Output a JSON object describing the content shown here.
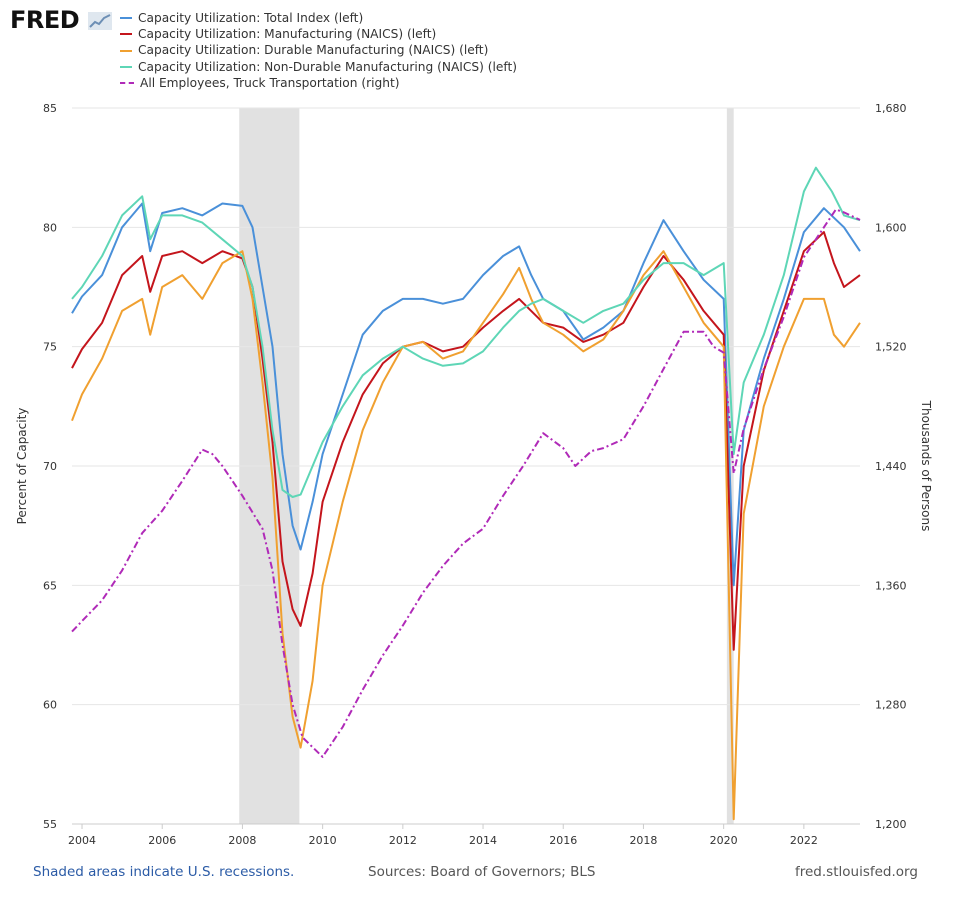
{
  "header": {
    "logo_text": "FRED"
  },
  "footer": {
    "recession_note": "Shaded areas indicate U.S. recessions.",
    "sources": "Sources: Board of Governors; BLS",
    "site": "fred.stlouisfed.org"
  },
  "chart_data": {
    "type": "line",
    "title": "",
    "xlabel": "",
    "ylabel_left": "Percent of Capacity",
    "ylabel_right": "Thousands of Persons",
    "x_range": [
      2003.75,
      2023.4
    ],
    "ylim_left": [
      55,
      85
    ],
    "ylim_right": [
      1200,
      1680
    ],
    "x_ticks": [
      "2004",
      "2006",
      "2008",
      "2010",
      "2012",
      "2014",
      "2016",
      "2018",
      "2020",
      "2022"
    ],
    "y_ticks_left": [
      "55",
      "60",
      "65",
      "70",
      "75",
      "80",
      "85"
    ],
    "y_ticks_right": [
      "1,200",
      "1,280",
      "1,360",
      "1,440",
      "1,520",
      "1,600",
      "1,680"
    ],
    "grid": true,
    "legend_position": "top-left",
    "recessions": [
      [
        2007.92,
        2009.42
      ],
      [
        2020.08,
        2020.25
      ]
    ],
    "series": [
      {
        "name": "Capacity Utilization: Total Index (left)",
        "axis": "left",
        "color": "#4a90d9",
        "dash": "solid",
        "points": [
          [
            2003.75,
            76.4
          ],
          [
            2004.0,
            77.1
          ],
          [
            2004.5,
            78.0
          ],
          [
            2005.0,
            80.0
          ],
          [
            2005.5,
            81.0
          ],
          [
            2005.7,
            79.0
          ],
          [
            2006.0,
            80.6
          ],
          [
            2006.5,
            80.8
          ],
          [
            2007.0,
            80.5
          ],
          [
            2007.5,
            81.0
          ],
          [
            2008.0,
            80.9
          ],
          [
            2008.25,
            80.0
          ],
          [
            2008.5,
            77.5
          ],
          [
            2008.75,
            75.0
          ],
          [
            2009.0,
            70.5
          ],
          [
            2009.25,
            67.5
          ],
          [
            2009.45,
            66.5
          ],
          [
            2009.75,
            68.5
          ],
          [
            2010.0,
            70.5
          ],
          [
            2010.5,
            73.0
          ],
          [
            2011.0,
            75.5
          ],
          [
            2011.5,
            76.5
          ],
          [
            2012.0,
            77.0
          ],
          [
            2012.5,
            77.0
          ],
          [
            2013.0,
            76.8
          ],
          [
            2013.5,
            77.0
          ],
          [
            2014.0,
            78.0
          ],
          [
            2014.5,
            78.8
          ],
          [
            2014.9,
            79.2
          ],
          [
            2015.2,
            78.0
          ],
          [
            2015.5,
            77.0
          ],
          [
            2016.0,
            76.5
          ],
          [
            2016.5,
            75.3
          ],
          [
            2017.0,
            75.8
          ],
          [
            2017.5,
            76.5
          ],
          [
            2018.0,
            78.5
          ],
          [
            2018.5,
            80.3
          ],
          [
            2019.0,
            79.0
          ],
          [
            2019.5,
            77.8
          ],
          [
            2020.0,
            77.0
          ],
          [
            2020.25,
            65.0
          ],
          [
            2020.5,
            71.5
          ],
          [
            2021.0,
            74.5
          ],
          [
            2021.5,
            77.0
          ],
          [
            2022.0,
            79.8
          ],
          [
            2022.5,
            80.8
          ],
          [
            2023.0,
            80.0
          ],
          [
            2023.4,
            79.0
          ]
        ]
      },
      {
        "name": "Capacity Utilization: Manufacturing (NAICS) (left)",
        "axis": "left",
        "color": "#c4151c",
        "dash": "solid",
        "points": [
          [
            2003.75,
            74.1
          ],
          [
            2004.0,
            74.9
          ],
          [
            2004.5,
            76.0
          ],
          [
            2005.0,
            78.0
          ],
          [
            2005.5,
            78.8
          ],
          [
            2005.7,
            77.3
          ],
          [
            2006.0,
            78.8
          ],
          [
            2006.5,
            79.0
          ],
          [
            2007.0,
            78.5
          ],
          [
            2007.5,
            79.0
          ],
          [
            2008.0,
            78.7
          ],
          [
            2008.25,
            77.5
          ],
          [
            2008.5,
            74.5
          ],
          [
            2008.75,
            71.0
          ],
          [
            2009.0,
            66.0
          ],
          [
            2009.25,
            64.0
          ],
          [
            2009.45,
            63.3
          ],
          [
            2009.75,
            65.5
          ],
          [
            2010.0,
            68.5
          ],
          [
            2010.5,
            71.0
          ],
          [
            2011.0,
            73.0
          ],
          [
            2011.5,
            74.3
          ],
          [
            2012.0,
            75.0
          ],
          [
            2012.5,
            75.2
          ],
          [
            2013.0,
            74.8
          ],
          [
            2013.5,
            75.0
          ],
          [
            2014.0,
            75.8
          ],
          [
            2014.5,
            76.5
          ],
          [
            2014.9,
            77.0
          ],
          [
            2015.2,
            76.5
          ],
          [
            2015.5,
            76.0
          ],
          [
            2016.0,
            75.8
          ],
          [
            2016.5,
            75.2
          ],
          [
            2017.0,
            75.5
          ],
          [
            2017.5,
            76.0
          ],
          [
            2018.0,
            77.5
          ],
          [
            2018.5,
            78.8
          ],
          [
            2019.0,
            77.8
          ],
          [
            2019.5,
            76.5
          ],
          [
            2020.0,
            75.5
          ],
          [
            2020.25,
            62.3
          ],
          [
            2020.5,
            70.0
          ],
          [
            2021.0,
            74.0
          ],
          [
            2021.5,
            76.5
          ],
          [
            2022.0,
            79.0
          ],
          [
            2022.5,
            79.8
          ],
          [
            2022.75,
            78.5
          ],
          [
            2023.0,
            77.5
          ],
          [
            2023.4,
            78.0
          ]
        ]
      },
      {
        "name": "Capacity Utilization: Durable Manufacturing (NAICS) (left)",
        "axis": "left",
        "color": "#f0a030",
        "dash": "solid",
        "points": [
          [
            2003.75,
            71.9
          ],
          [
            2004.0,
            73.0
          ],
          [
            2004.5,
            74.5
          ],
          [
            2005.0,
            76.5
          ],
          [
            2005.5,
            77.0
          ],
          [
            2005.7,
            75.5
          ],
          [
            2006.0,
            77.5
          ],
          [
            2006.5,
            78.0
          ],
          [
            2007.0,
            77.0
          ],
          [
            2007.5,
            78.5
          ],
          [
            2008.0,
            79.0
          ],
          [
            2008.25,
            77.0
          ],
          [
            2008.5,
            73.5
          ],
          [
            2008.75,
            69.5
          ],
          [
            2009.0,
            63.0
          ],
          [
            2009.25,
            59.5
          ],
          [
            2009.45,
            58.2
          ],
          [
            2009.75,
            61.0
          ],
          [
            2010.0,
            65.0
          ],
          [
            2010.5,
            68.5
          ],
          [
            2011.0,
            71.5
          ],
          [
            2011.5,
            73.5
          ],
          [
            2012.0,
            75.0
          ],
          [
            2012.5,
            75.2
          ],
          [
            2013.0,
            74.5
          ],
          [
            2013.5,
            74.8
          ],
          [
            2014.0,
            76.0
          ],
          [
            2014.5,
            77.2
          ],
          [
            2014.9,
            78.3
          ],
          [
            2015.2,
            77.0
          ],
          [
            2015.5,
            76.0
          ],
          [
            2016.0,
            75.5
          ],
          [
            2016.5,
            74.8
          ],
          [
            2017.0,
            75.3
          ],
          [
            2017.5,
            76.5
          ],
          [
            2018.0,
            78.0
          ],
          [
            2018.5,
            79.0
          ],
          [
            2019.0,
            77.5
          ],
          [
            2019.5,
            76.0
          ],
          [
            2020.0,
            75.0
          ],
          [
            2020.25,
            55.2
          ],
          [
            2020.5,
            68.0
          ],
          [
            2021.0,
            72.5
          ],
          [
            2021.5,
            75.0
          ],
          [
            2022.0,
            77.0
          ],
          [
            2022.5,
            77.0
          ],
          [
            2022.75,
            75.5
          ],
          [
            2023.0,
            75.0
          ],
          [
            2023.4,
            76.0
          ]
        ]
      },
      {
        "name": "Capacity Utilization: Non-Durable Manufacturing (NAICS) (left)",
        "axis": "left",
        "color": "#5ed6b6",
        "dash": "solid",
        "points": [
          [
            2003.75,
            77.0
          ],
          [
            2004.0,
            77.5
          ],
          [
            2004.5,
            78.8
          ],
          [
            2005.0,
            80.5
          ],
          [
            2005.5,
            81.3
          ],
          [
            2005.7,
            79.5
          ],
          [
            2006.0,
            80.5
          ],
          [
            2006.5,
            80.5
          ],
          [
            2007.0,
            80.2
          ],
          [
            2007.5,
            79.5
          ],
          [
            2008.0,
            78.8
          ],
          [
            2008.25,
            77.5
          ],
          [
            2008.5,
            75.0
          ],
          [
            2008.75,
            71.5
          ],
          [
            2009.0,
            69.0
          ],
          [
            2009.25,
            68.7
          ],
          [
            2009.45,
            68.8
          ],
          [
            2009.75,
            70.0
          ],
          [
            2010.0,
            71.0
          ],
          [
            2010.5,
            72.5
          ],
          [
            2011.0,
            73.8
          ],
          [
            2011.5,
            74.5
          ],
          [
            2012.0,
            75.0
          ],
          [
            2012.5,
            74.5
          ],
          [
            2013.0,
            74.2
          ],
          [
            2013.5,
            74.3
          ],
          [
            2014.0,
            74.8
          ],
          [
            2014.5,
            75.8
          ],
          [
            2014.9,
            76.5
          ],
          [
            2015.2,
            76.8
          ],
          [
            2015.5,
            77.0
          ],
          [
            2016.0,
            76.5
          ],
          [
            2016.5,
            76.0
          ],
          [
            2017.0,
            76.5
          ],
          [
            2017.5,
            76.8
          ],
          [
            2018.0,
            77.8
          ],
          [
            2018.5,
            78.5
          ],
          [
            2019.0,
            78.5
          ],
          [
            2019.5,
            78.0
          ],
          [
            2020.0,
            78.5
          ],
          [
            2020.25,
            70.5
          ],
          [
            2020.5,
            73.5
          ],
          [
            2021.0,
            75.5
          ],
          [
            2021.5,
            78.0
          ],
          [
            2022.0,
            81.5
          ],
          [
            2022.3,
            82.5
          ],
          [
            2022.7,
            81.5
          ],
          [
            2023.0,
            80.5
          ],
          [
            2023.4,
            80.3
          ]
        ]
      },
      {
        "name": "All Employees, Truck Transportation (right)",
        "axis": "right",
        "color": "#b02ab8",
        "dash": "dashdot",
        "points": [
          [
            2003.75,
            1329
          ],
          [
            2004.0,
            1336
          ],
          [
            2004.5,
            1350
          ],
          [
            2005.0,
            1370
          ],
          [
            2005.5,
            1395
          ],
          [
            2006.0,
            1410
          ],
          [
            2006.5,
            1430
          ],
          [
            2007.0,
            1451
          ],
          [
            2007.25,
            1448
          ],
          [
            2007.5,
            1440
          ],
          [
            2008.0,
            1420
          ],
          [
            2008.5,
            1398
          ],
          [
            2008.75,
            1370
          ],
          [
            2009.0,
            1320
          ],
          [
            2009.25,
            1280
          ],
          [
            2009.5,
            1258
          ],
          [
            2010.0,
            1245
          ],
          [
            2010.5,
            1265
          ],
          [
            2011.0,
            1290
          ],
          [
            2011.5,
            1313
          ],
          [
            2012.0,
            1333
          ],
          [
            2012.5,
            1355
          ],
          [
            2013.0,
            1373
          ],
          [
            2013.5,
            1388
          ],
          [
            2014.0,
            1398
          ],
          [
            2014.5,
            1420
          ],
          [
            2015.0,
            1440
          ],
          [
            2015.5,
            1462
          ],
          [
            2016.0,
            1452
          ],
          [
            2016.3,
            1440
          ],
          [
            2016.7,
            1450
          ],
          [
            2017.0,
            1452
          ],
          [
            2017.5,
            1458
          ],
          [
            2018.0,
            1480
          ],
          [
            2018.5,
            1505
          ],
          [
            2019.0,
            1530
          ],
          [
            2019.5,
            1530
          ],
          [
            2019.75,
            1520
          ],
          [
            2020.0,
            1516
          ],
          [
            2020.25,
            1435
          ],
          [
            2020.5,
            1465
          ],
          [
            2021.0,
            1505
          ],
          [
            2021.5,
            1540
          ],
          [
            2022.0,
            1580
          ],
          [
            2022.5,
            1600
          ],
          [
            2022.8,
            1612
          ],
          [
            2023.0,
            1610
          ],
          [
            2023.4,
            1605
          ]
        ]
      }
    ]
  }
}
